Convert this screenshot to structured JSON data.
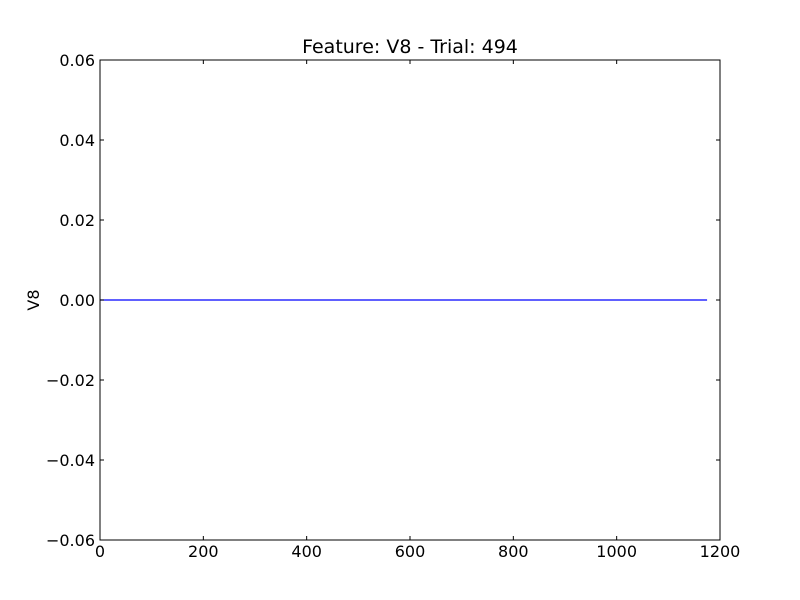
{
  "chart_data": {
    "type": "line",
    "title": "Feature: V8 - Trial: 494",
    "xlabel": "",
    "ylabel": "V8",
    "xlim": [
      0,
      1200
    ],
    "ylim": [
      -0.06,
      0.06
    ],
    "x_ticks": [
      {
        "value": 0,
        "label": "0"
      },
      {
        "value": 200,
        "label": "200"
      },
      {
        "value": 400,
        "label": "400"
      },
      {
        "value": 600,
        "label": "600"
      },
      {
        "value": 800,
        "label": "800"
      },
      {
        "value": 1000,
        "label": "1000"
      },
      {
        "value": 1200,
        "label": "1200"
      }
    ],
    "y_ticks": [
      {
        "value": 0.06,
        "label": "0.06"
      },
      {
        "value": 0.04,
        "label": "0.04"
      },
      {
        "value": 0.02,
        "label": "0.02"
      },
      {
        "value": 0.0,
        "label": "0.00"
      },
      {
        "value": -0.02,
        "label": "−0.02"
      },
      {
        "value": -0.04,
        "label": "−0.04"
      },
      {
        "value": -0.06,
        "label": "−0.06"
      }
    ],
    "grid": false,
    "series": [
      {
        "color": "#0000ff",
        "x": [
          0,
          1175
        ],
        "y": [
          0.0,
          0.0
        ]
      }
    ]
  }
}
